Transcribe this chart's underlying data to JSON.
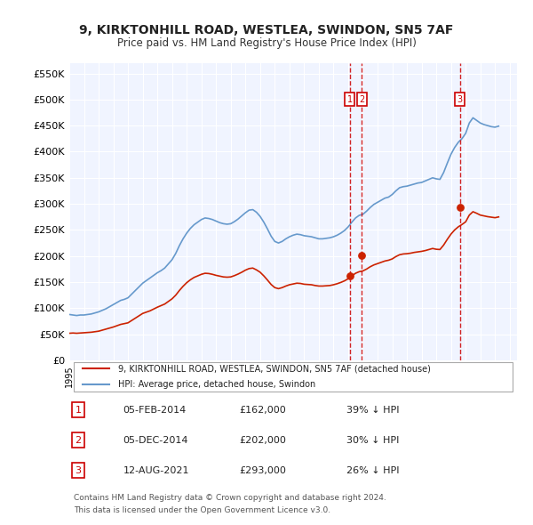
{
  "title": "9, KIRKTONHILL ROAD, WESTLEA, SWINDON, SN5 7AF",
  "subtitle": "Price paid vs. HM Land Registry's House Price Index (HPI)",
  "xlabel": "",
  "ylabel": "",
  "ylim": [
    0,
    570000
  ],
  "yticks": [
    0,
    50000,
    100000,
    150000,
    200000,
    250000,
    300000,
    350000,
    400000,
    450000,
    500000,
    550000
  ],
  "ytick_labels": [
    "£0",
    "£50K",
    "£100K",
    "£150K",
    "£200K",
    "£250K",
    "£300K",
    "£350K",
    "£400K",
    "£450K",
    "£500K",
    "£550K"
  ],
  "background_color": "#ffffff",
  "plot_bg_color": "#f0f4ff",
  "grid_color": "#ffffff",
  "hpi_color": "#6699cc",
  "price_color": "#cc2200",
  "transaction_color": "#cc2200",
  "vline_color": "#cc0000",
  "transactions": [
    {
      "date": 2014.1,
      "price": 162000,
      "label": "1"
    },
    {
      "date": 2014.92,
      "price": 202000,
      "label": "2"
    },
    {
      "date": 2021.6,
      "price": 293000,
      "label": "3"
    }
  ],
  "table_rows": [
    {
      "num": "1",
      "date": "05-FEB-2014",
      "price": "£162,000",
      "hpi": "39% ↓ HPI"
    },
    {
      "num": "2",
      "date": "05-DEC-2014",
      "price": "£202,000",
      "hpi": "30% ↓ HPI"
    },
    {
      "num": "3",
      "date": "12-AUG-2021",
      "price": "£293,000",
      "hpi": "26% ↓ HPI"
    }
  ],
  "legend_entries": [
    "9, KIRKTONHILL ROAD, WESTLEA, SWINDON, SN5 7AF (detached house)",
    "HPI: Average price, detached house, Swindon"
  ],
  "footer": [
    "Contains HM Land Registry data © Crown copyright and database right 2024.",
    "This data is licensed under the Open Government Licence v3.0."
  ],
  "hpi_data": {
    "years": [
      1995.0,
      1995.25,
      1995.5,
      1995.75,
      1996.0,
      1996.25,
      1996.5,
      1996.75,
      1997.0,
      1997.25,
      1997.5,
      1997.75,
      1998.0,
      1998.25,
      1998.5,
      1998.75,
      1999.0,
      1999.25,
      1999.5,
      1999.75,
      2000.0,
      2000.25,
      2000.5,
      2000.75,
      2001.0,
      2001.25,
      2001.5,
      2001.75,
      2002.0,
      2002.25,
      2002.5,
      2002.75,
      2003.0,
      2003.25,
      2003.5,
      2003.75,
      2004.0,
      2004.25,
      2004.5,
      2004.75,
      2005.0,
      2005.25,
      2005.5,
      2005.75,
      2006.0,
      2006.25,
      2006.5,
      2006.75,
      2007.0,
      2007.25,
      2007.5,
      2007.75,
      2008.0,
      2008.25,
      2008.5,
      2008.75,
      2009.0,
      2009.25,
      2009.5,
      2009.75,
      2010.0,
      2010.25,
      2010.5,
      2010.75,
      2011.0,
      2011.25,
      2011.5,
      2011.75,
      2012.0,
      2012.25,
      2012.5,
      2012.75,
      2013.0,
      2013.25,
      2013.5,
      2013.75,
      2014.0,
      2014.25,
      2014.5,
      2014.75,
      2015.0,
      2015.25,
      2015.5,
      2015.75,
      2016.0,
      2016.25,
      2016.5,
      2016.75,
      2017.0,
      2017.25,
      2017.5,
      2017.75,
      2018.0,
      2018.25,
      2018.5,
      2018.75,
      2019.0,
      2019.25,
      2019.5,
      2019.75,
      2020.0,
      2020.25,
      2020.5,
      2020.75,
      2021.0,
      2021.25,
      2021.5,
      2021.75,
      2022.0,
      2022.25,
      2022.5,
      2022.75,
      2023.0,
      2023.25,
      2023.5,
      2023.75,
      2024.0,
      2024.25
    ],
    "values": [
      88000,
      87000,
      86000,
      87000,
      87000,
      88000,
      89000,
      91000,
      93000,
      96000,
      99000,
      103000,
      107000,
      111000,
      115000,
      117000,
      120000,
      127000,
      134000,
      141000,
      148000,
      153000,
      158000,
      163000,
      168000,
      172000,
      177000,
      185000,
      193000,
      205000,
      220000,
      233000,
      244000,
      253000,
      260000,
      265000,
      270000,
      273000,
      272000,
      270000,
      267000,
      264000,
      262000,
      261000,
      262000,
      266000,
      271000,
      277000,
      283000,
      288000,
      289000,
      284000,
      276000,
      265000,
      252000,
      238000,
      228000,
      225000,
      228000,
      233000,
      237000,
      240000,
      242000,
      241000,
      239000,
      238000,
      237000,
      235000,
      233000,
      233000,
      234000,
      235000,
      237000,
      240000,
      244000,
      249000,
      256000,
      265000,
      273000,
      278000,
      280000,
      286000,
      293000,
      299000,
      303000,
      307000,
      311000,
      313000,
      318000,
      325000,
      331000,
      333000,
      334000,
      336000,
      338000,
      340000,
      341000,
      344000,
      347000,
      350000,
      348000,
      347000,
      360000,
      378000,
      395000,
      408000,
      418000,
      425000,
      435000,
      455000,
      465000,
      460000,
      455000,
      452000,
      450000,
      448000,
      447000,
      449000
    ]
  },
  "price_data": {
    "years": [
      1995.0,
      1995.25,
      1995.5,
      1995.75,
      1996.0,
      1996.25,
      1996.5,
      1996.75,
      1997.0,
      1997.25,
      1997.5,
      1997.75,
      1998.0,
      1998.25,
      1998.5,
      1998.75,
      1999.0,
      1999.25,
      1999.5,
      1999.75,
      2000.0,
      2000.25,
      2000.5,
      2000.75,
      2001.0,
      2001.25,
      2001.5,
      2001.75,
      2002.0,
      2002.25,
      2002.5,
      2002.75,
      2003.0,
      2003.25,
      2003.5,
      2003.75,
      2004.0,
      2004.25,
      2004.5,
      2004.75,
      2005.0,
      2005.25,
      2005.5,
      2005.75,
      2006.0,
      2006.25,
      2006.5,
      2006.75,
      2007.0,
      2007.25,
      2007.5,
      2007.75,
      2008.0,
      2008.25,
      2008.5,
      2008.75,
      2009.0,
      2009.25,
      2009.5,
      2009.75,
      2010.0,
      2010.25,
      2010.5,
      2010.75,
      2011.0,
      2011.25,
      2011.5,
      2011.75,
      2012.0,
      2012.25,
      2012.5,
      2012.75,
      2013.0,
      2013.25,
      2013.5,
      2013.75,
      2014.0,
      2014.25,
      2014.5,
      2014.75,
      2015.0,
      2015.25,
      2015.5,
      2015.75,
      2016.0,
      2016.25,
      2016.5,
      2016.75,
      2017.0,
      2017.25,
      2017.5,
      2017.75,
      2018.0,
      2018.25,
      2018.5,
      2018.75,
      2019.0,
      2019.25,
      2019.5,
      2019.75,
      2020.0,
      2020.25,
      2020.5,
      2020.75,
      2021.0,
      2021.25,
      2021.5,
      2021.75,
      2022.0,
      2022.25,
      2022.5,
      2022.75,
      2023.0,
      2023.25,
      2023.5,
      2023.75,
      2024.0,
      2024.25
    ],
    "values": [
      52000,
      52500,
      52000,
      52500,
      53000,
      53500,
      54000,
      55000,
      56000,
      58000,
      60000,
      62000,
      64000,
      66500,
      69000,
      70500,
      72000,
      76500,
      81000,
      85500,
      90000,
      92500,
      95000,
      98500,
      102000,
      105000,
      108000,
      113000,
      118000,
      125000,
      134000,
      142000,
      149000,
      154500,
      159000,
      162000,
      165000,
      167000,
      166500,
      165000,
      163000,
      161500,
      160000,
      159500,
      160000,
      162500,
      165500,
      169000,
      173000,
      176000,
      177000,
      173500,
      169000,
      162000,
      154000,
      145500,
      139500,
      137500,
      139500,
      142500,
      145000,
      146500,
      148000,
      147500,
      146000,
      145500,
      145000,
      143500,
      142500,
      142500,
      143000,
      143500,
      145000,
      147000,
      149500,
      152500,
      156500,
      162000,
      167000,
      170000,
      171500,
      175000,
      179500,
      183000,
      185500,
      188000,
      190500,
      192000,
      194500,
      199000,
      202500,
      204000,
      204500,
      205500,
      207000,
      208000,
      209000,
      210500,
      212500,
      214500,
      213000,
      212500,
      221000,
      232000,
      242000,
      250000,
      256000,
      260500,
      265500,
      278500,
      285000,
      282000,
      278500,
      277000,
      275500,
      274500,
      273500,
      275000
    ]
  }
}
